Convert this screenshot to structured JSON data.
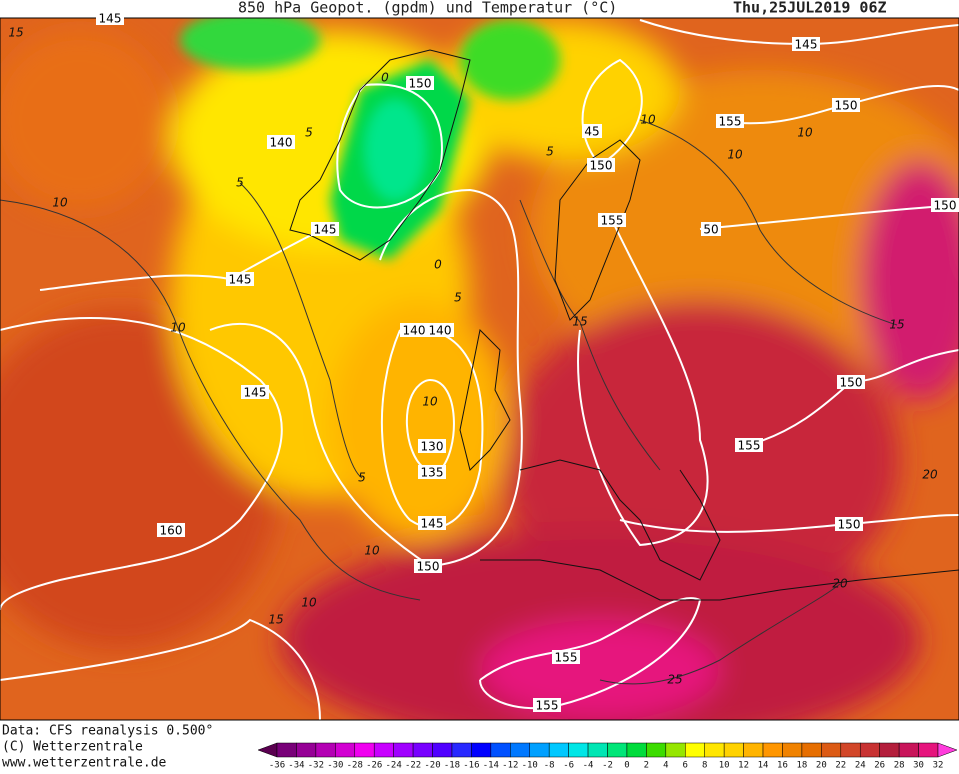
{
  "header": {
    "title": "850 hPa Geopot. (gpdm) und Temperatur (°C)",
    "valid": "Thu,25JUL2019 06Z"
  },
  "footer": {
    "source": "Data: CFS reanalysis 0.500°",
    "copyright": "(C) Wetterzentrale",
    "website": "www.wetterzentrale.de"
  },
  "colorbar": {
    "labels": [
      -36,
      -34,
      -32,
      -30,
      -28,
      -26,
      -24,
      -22,
      -20,
      -18,
      -16,
      -14,
      -12,
      -10,
      -8,
      -6,
      -4,
      -2,
      0,
      2,
      4,
      6,
      8,
      10,
      12,
      14,
      16,
      18,
      20,
      22,
      24,
      26,
      28,
      30,
      32
    ],
    "colors": [
      "#5a0050",
      "#780078",
      "#960096",
      "#b400b4",
      "#d200d2",
      "#f000f0",
      "#c800ff",
      "#a000ff",
      "#7800ff",
      "#5000ff",
      "#2828ff",
      "#0000ff",
      "#0050ff",
      "#0078ff",
      "#00a0ff",
      "#00c8ff",
      "#00e6e6",
      "#00e6b4",
      "#00e678",
      "#00dc3c",
      "#3cdc00",
      "#96e600",
      "#ffff00",
      "#ffe600",
      "#ffd200",
      "#ffb400",
      "#ff9600",
      "#f08200",
      "#e66e00",
      "#dc5a14",
      "#d24628",
      "#c83232",
      "#b41e3c",
      "#c8145a",
      "#e6147d",
      "#ff3cdc"
    ]
  },
  "map": {
    "contour_labels": [
      "145",
      "150",
      "140",
      "145",
      "145",
      "140",
      "140",
      "145",
      "130",
      "135",
      "145",
      "150",
      "160",
      "145",
      "150",
      "45",
      "155",
      "150",
      "155",
      "50",
      "150",
      "150",
      "155",
      "150",
      "155",
      "155"
    ],
    "isotherm_labels": [
      "15",
      "10",
      "10",
      "5",
      "10",
      "5",
      "10",
      "10",
      "15",
      "15",
      "20",
      "25",
      "10",
      "10",
      "15",
      "20",
      "0",
      "5",
      "5",
      "10",
      "0",
      "5"
    ]
  }
}
